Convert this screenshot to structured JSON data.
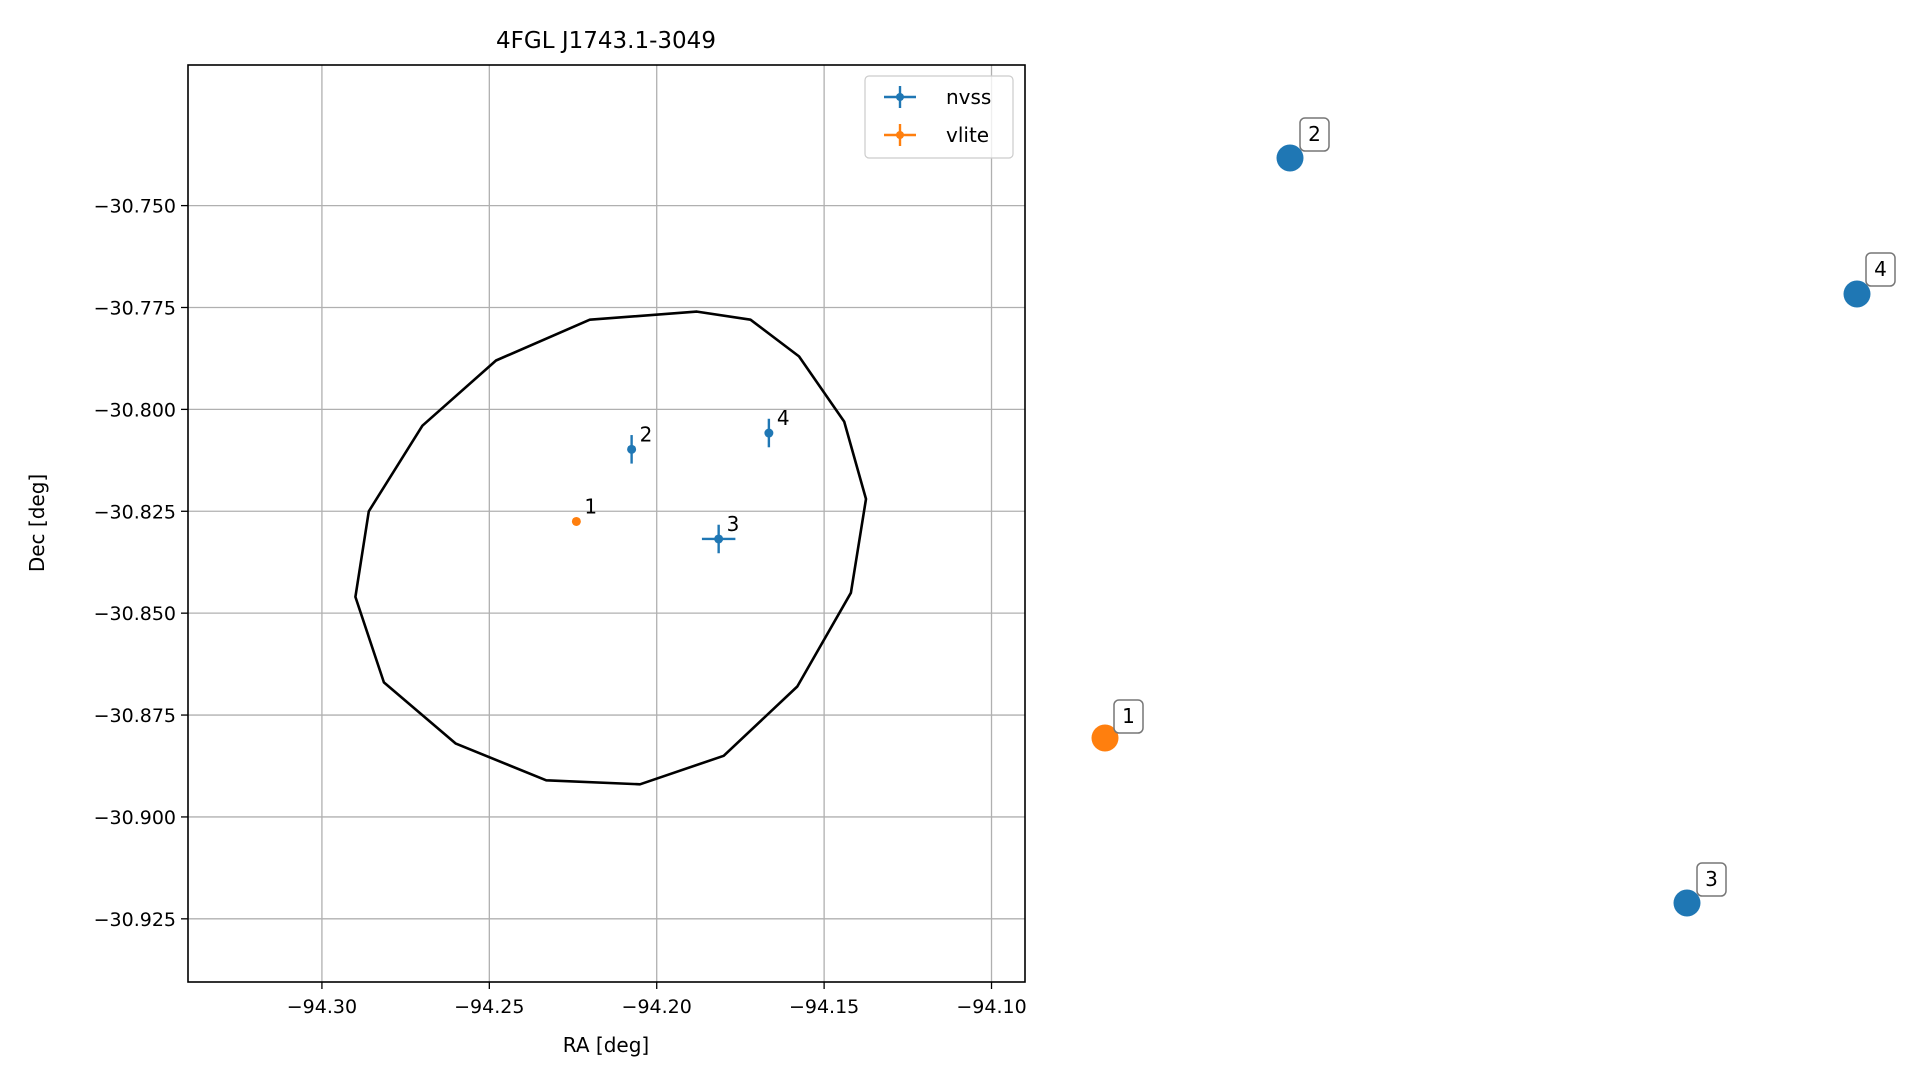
{
  "chart_data": {
    "type": "scatter",
    "title": "4FGL J1743.1-3049",
    "xlabel": "RA [deg]",
    "ylabel": "Dec [deg]",
    "xlim": [
      -94.34,
      -94.09
    ],
    "ylim": [
      -30.9405,
      -30.7155
    ],
    "xticks": [
      -94.3,
      -94.25,
      -94.2,
      -94.15,
      -94.1
    ],
    "yticks": [
      -30.75,
      -30.775,
      -30.8,
      -30.825,
      -30.85,
      -30.875,
      -30.9,
      -30.925
    ],
    "xtick_labels": [
      "−94.30",
      "−94.25",
      "−94.20",
      "−94.15",
      "−94.10"
    ],
    "ytick_labels": [
      "−30.750",
      "−30.775",
      "−30.800",
      "−30.825",
      "−30.850",
      "−30.875",
      "−30.900",
      "−30.925"
    ],
    "grid": true,
    "legend_position": "top-right",
    "series": [
      {
        "name": "nvss",
        "color": "#1f77b4",
        "points": [
          {
            "label": "2",
            "x": -94.2075,
            "y": -30.8098,
            "xerr": 0.0012,
            "yerr": 0.0035
          },
          {
            "label": "3",
            "x": -94.1815,
            "y": -30.8318,
            "xerr": 0.005,
            "yerr": 0.0035
          },
          {
            "label": "4",
            "x": -94.1665,
            "y": -30.8058,
            "xerr": 0.001,
            "yerr": 0.0035
          }
        ]
      },
      {
        "name": "vlite",
        "color": "#ff7f0e",
        "points": [
          {
            "label": "1",
            "x": -94.224,
            "y": -30.8275,
            "xerr": 0.0,
            "yerr": 0.0
          }
        ]
      }
    ],
    "ellipse": {
      "color": "#000000",
      "center_x": -94.214,
      "center_y": -30.8334,
      "points": [
        [
          -94.188,
          -30.776
        ],
        [
          -94.172,
          -30.778
        ],
        [
          -94.1575,
          -30.787
        ],
        [
          -94.144,
          -30.803
        ],
        [
          -94.1375,
          -30.822
        ],
        [
          -94.142,
          -30.845
        ],
        [
          -94.158,
          -30.868
        ],
        [
          -94.18,
          -30.885
        ],
        [
          -94.205,
          -30.892
        ],
        [
          -94.233,
          -30.891
        ],
        [
          -94.26,
          -30.882
        ],
        [
          -94.2815,
          -30.867
        ],
        [
          -94.29,
          -30.846
        ],
        [
          -94.286,
          -30.825
        ],
        [
          -94.27,
          -30.804
        ],
        [
          -94.248,
          -30.788
        ],
        [
          -94.22,
          -30.778
        ]
      ]
    },
    "side_markers": [
      {
        "label": "1",
        "color": "#ff7f0e"
      },
      {
        "label": "2",
        "color": "#1f77b4"
      },
      {
        "label": "3",
        "color": "#1f77b4"
      },
      {
        "label": "4",
        "color": "#1f77b4"
      }
    ]
  }
}
